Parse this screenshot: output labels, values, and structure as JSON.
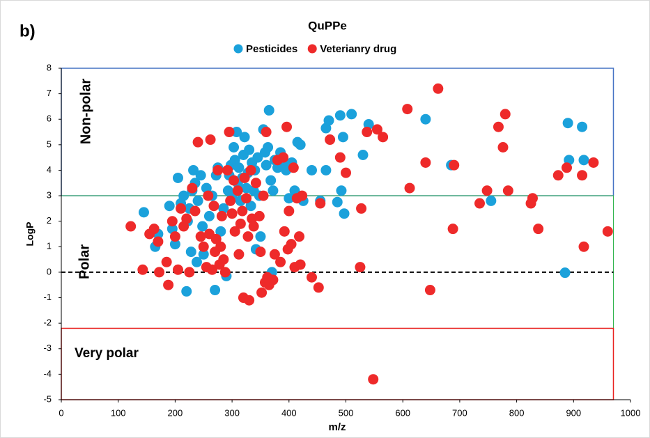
{
  "chart_data": {
    "type": "scatter",
    "panel_label": "b)",
    "title": "QuPPe",
    "xlabel": "m/z",
    "ylabel": "LogP",
    "xlim": [
      0,
      1000
    ],
    "xticks": [
      0,
      100,
      200,
      300,
      400,
      500,
      600,
      700,
      800,
      900,
      1000
    ],
    "ylim": [
      -5,
      8
    ],
    "yticks": [
      -5,
      -4,
      -3,
      -2,
      -1,
      0,
      1,
      2,
      3,
      4,
      5,
      6,
      7,
      8
    ],
    "reference_line": 0,
    "legend": "top",
    "regions": [
      {
        "label": "Non-polar",
        "color": "#4472c4",
        "xlim": [
          0,
          970
        ],
        "ylim": [
          3,
          8
        ]
      },
      {
        "label": "Polar",
        "color": "#2db34a",
        "xlim": [
          0,
          970
        ],
        "ylim": [
          -2.2,
          3
        ]
      },
      {
        "label": "Very polar",
        "color": "#e8201e",
        "xlim": [
          0,
          970
        ],
        "ylim": [
          -5,
          -2.2
        ]
      }
    ],
    "series": [
      {
        "name": "Pesticides",
        "color": "#1ba1db",
        "x": [
          145,
          165,
          170,
          190,
          195,
          200,
          205,
          210,
          215,
          220,
          222,
          225,
          228,
          230,
          232,
          235,
          238,
          240,
          245,
          248,
          250,
          255,
          260,
          265,
          270,
          272,
          275,
          280,
          285,
          290,
          293,
          295,
          298,
          300,
          303,
          305,
          308,
          310,
          312,
          315,
          318,
          320,
          322,
          325,
          328,
          330,
          333,
          335,
          338,
          340,
          342,
          345,
          348,
          350,
          355,
          358,
          360,
          363,
          365,
          368,
          370,
          372,
          375,
          380,
          385,
          390,
          395,
          400,
          405,
          410,
          415,
          420,
          425,
          440,
          455,
          465,
          465,
          470,
          485,
          490,
          492,
          495,
          497,
          510,
          530,
          540,
          640,
          685,
          755,
          885,
          890,
          892,
          915,
          918
        ],
        "values": [
          2.35,
          1.0,
          1.5,
          2.6,
          1.7,
          1.1,
          3.7,
          2.7,
          3.0,
          -0.75,
          2.0,
          2.5,
          0.8,
          3.2,
          4.0,
          3.5,
          0.4,
          2.8,
          3.8,
          1.8,
          0.7,
          3.3,
          2.2,
          3.0,
          -0.7,
          3.8,
          4.1,
          1.6,
          2.5,
          -0.15,
          3.2,
          3.8,
          4.2,
          3.0,
          4.9,
          4.4,
          5.5,
          3.5,
          4.1,
          2.8,
          3.7,
          4.6,
          5.3,
          3.3,
          3.9,
          4.8,
          2.6,
          4.3,
          3.2,
          4.0,
          0.9,
          4.5,
          3.0,
          1.4,
          5.6,
          4.7,
          4.2,
          4.9,
          6.35,
          3.6,
          0.0,
          3.2,
          4.4,
          4.1,
          4.7,
          4.2,
          4.0,
          2.9,
          4.3,
          3.2,
          5.1,
          5.0,
          2.8,
          4.0,
          2.8,
          4.0,
          5.65,
          5.95,
          2.75,
          6.15,
          3.2,
          5.3,
          2.3,
          6.2,
          4.6,
          5.8,
          6.0,
          4.2,
          2.8,
          -0.02,
          5.85,
          4.4,
          5.7,
          4.4
        ]
      },
      {
        "name": "Veterianry drug",
        "color": "#ee2a2a",
        "x": [
          122,
          143,
          155,
          163,
          170,
          172,
          185,
          188,
          195,
          200,
          205,
          210,
          215,
          220,
          225,
          230,
          235,
          240,
          245,
          250,
          255,
          258,
          260,
          262,
          265,
          268,
          270,
          272,
          275,
          278,
          280,
          282,
          285,
          288,
          292,
          295,
          297,
          300,
          303,
          305,
          310,
          312,
          315,
          318,
          320,
          322,
          325,
          328,
          330,
          333,
          335,
          338,
          342,
          348,
          350,
          352,
          355,
          358,
          360,
          362,
          365,
          372,
          375,
          380,
          385,
          390,
          392,
          396,
          398,
          400,
          404,
          408,
          410,
          414,
          418,
          420,
          423,
          440,
          452,
          455,
          472,
          490,
          500,
          525,
          527,
          537,
          555,
          565,
          548,
          608,
          612,
          640,
          648,
          662,
          688,
          690,
          735,
          748,
          768,
          776,
          780,
          785,
          825,
          828,
          838,
          873,
          888,
          915,
          918,
          935,
          960
        ],
        "values": [
          1.8,
          0.1,
          1.5,
          1.7,
          1.2,
          0.0,
          0.4,
          -0.5,
          2.0,
          1.4,
          0.1,
          2.5,
          1.8,
          2.1,
          0.0,
          3.3,
          2.4,
          5.1,
          1.4,
          1.0,
          0.2,
          3.0,
          1.5,
          5.2,
          0.1,
          2.6,
          0.8,
          1.3,
          4.0,
          0.3,
          1.0,
          2.2,
          0.5,
          0.0,
          4.0,
          5.5,
          2.8,
          2.3,
          3.6,
          1.6,
          3.2,
          0.7,
          1.9,
          2.4,
          -1.0,
          3.7,
          2.9,
          1.4,
          -1.1,
          4.0,
          2.1,
          1.8,
          3.5,
          2.2,
          0.8,
          -0.8,
          3.0,
          -0.4,
          5.5,
          -0.2,
          -0.5,
          -0.3,
          0.7,
          4.4,
          0.4,
          4.5,
          1.6,
          5.7,
          0.9,
          2.4,
          1.1,
          4.1,
          0.2,
          2.9,
          1.4,
          0.3,
          3.0,
          -0.2,
          -0.6,
          2.7,
          5.2,
          4.5,
          3.9,
          0.2,
          2.5,
          5.5,
          5.6,
          5.3,
          -4.2,
          6.4,
          3.3,
          4.3,
          -0.7,
          7.2,
          1.7,
          4.2,
          2.7,
          3.2,
          5.7,
          4.9,
          6.2,
          3.2,
          2.7,
          2.9,
          1.7,
          3.8,
          4.1,
          3.8,
          1.0,
          4.3,
          1.6
        ]
      }
    ]
  }
}
